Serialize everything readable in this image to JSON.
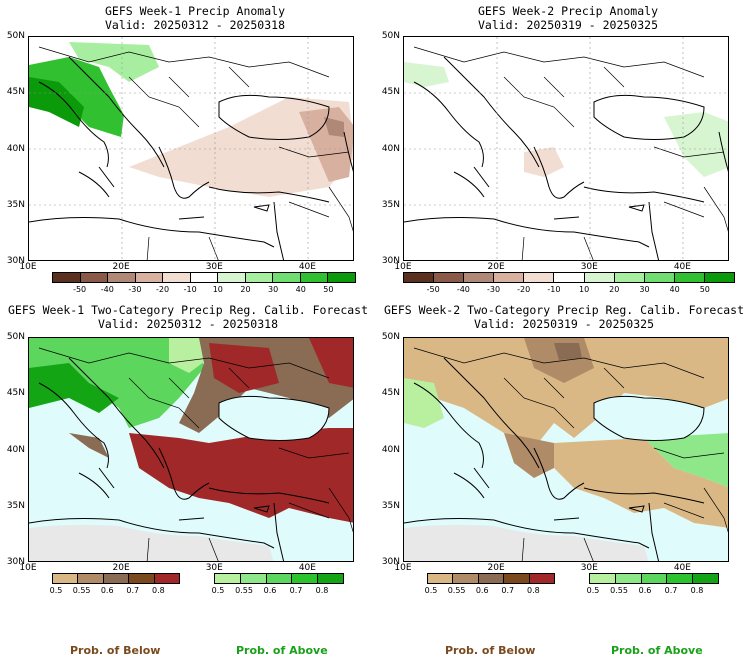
{
  "panels": [
    {
      "title": "GEFS Week-1 Precip Anomaly",
      "valid": "Valid: 20250312 - 20250318",
      "kind": "anomaly",
      "lat_labels": [
        "50N",
        "45N",
        "40N",
        "35N",
        "30N"
      ],
      "lon_labels": [
        "10E",
        "20E",
        "30E",
        "40E"
      ]
    },
    {
      "title": "GEFS Week-2 Precip Anomaly",
      "valid": "Valid: 20250319 - 20250325",
      "kind": "anomaly",
      "lat_labels": [
        "50N",
        "45N",
        "40N",
        "35N",
        "30N"
      ],
      "lon_labels": [
        "10E",
        "20E",
        "30E",
        "40E"
      ]
    },
    {
      "title": "GEFS Week-1 Two-Category Precip Reg. Calib. Forecast",
      "valid": "Valid: 20250312 - 20250318",
      "kind": "prob",
      "lat_labels": [
        "50N",
        "45N",
        "40N",
        "35N",
        "30N"
      ],
      "lon_labels": [
        "10E",
        "20E",
        "30E",
        "40E"
      ]
    },
    {
      "title": "GEFS Week-2 Two-Category Precip Reg. Calib. Forecast",
      "valid": "Valid: 20250319 - 20250325",
      "kind": "prob",
      "lat_labels": [
        "50N",
        "45N",
        "40N",
        "35N",
        "30N"
      ],
      "lon_labels": [
        "10E",
        "20E",
        "30E",
        "40E"
      ]
    }
  ],
  "anomaly_colorbar": {
    "labels": [
      "-50",
      "-40",
      "-30",
      "-20",
      "-10",
      "10",
      "20",
      "30",
      "40",
      "50"
    ],
    "colors": [
      "#5a3020",
      "#8a5a48",
      "#b08878",
      "#d8b0a0",
      "#f2ddd2",
      "#ffffff",
      "#d7f5d0",
      "#a8eea0",
      "#70dd70",
      "#30c030",
      "#0a9a0a"
    ]
  },
  "below_colorbar": {
    "labels": [
      "0.5",
      "0.55",
      "0.6",
      "0.7",
      "0.8"
    ],
    "colors": [
      "#d9b886",
      "#b08b68",
      "#8a6c55",
      "#7a4a1e",
      "#a02828"
    ]
  },
  "above_colorbar": {
    "labels": [
      "0.5",
      "0.55",
      "0.6",
      "0.7",
      "0.8"
    ],
    "colors": [
      "#b8f0a0",
      "#8ee88a",
      "#5cd65c",
      "#2cc42c",
      "#13a513"
    ]
  },
  "footer": {
    "below": "Prob. of Below",
    "above": "Prob. of Above",
    "below_color": "#7a4a1e",
    "above_color": "#1aa01a"
  }
}
